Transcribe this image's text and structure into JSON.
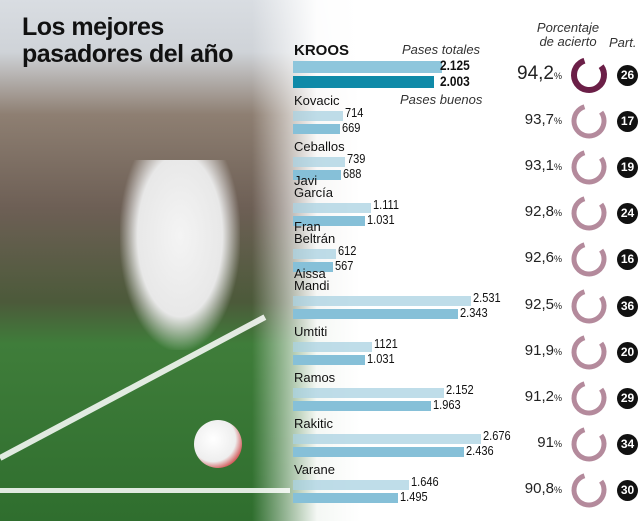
{
  "title": "Los mejores pasadores del año",
  "headers": {
    "total": "Pases totales",
    "good": "Pases buenos",
    "accuracy": "Porcentaje de acierto",
    "matches": "Part."
  },
  "colors": {
    "total_bar": "#a9d1e2",
    "good_bar": "#86c0d8",
    "kroos_total": "#8ec6dc",
    "kroos_good": "#0f8aa8",
    "ring_highlight": "#6b1f47",
    "ring": "#b48a9c"
  },
  "chart_data": {
    "type": "bar",
    "orientation": "horizontal",
    "title": "Los mejores pasadores del año",
    "categories": [
      "KROOS",
      "Kovacic",
      "Ceballos",
      "Javi García",
      "Fran Beltrán",
      "Aissa Mandi",
      "Umtiti",
      "Ramos",
      "Rakitic",
      "Varane"
    ],
    "series": [
      {
        "name": "Pases totales",
        "values": [
          2125,
          714,
          739,
          1111,
          612,
          2531,
          1121,
          2152,
          2676,
          1646
        ],
        "labels": [
          "2.125",
          "714",
          "739",
          "1.111",
          "612",
          "2.531",
          "1121",
          "2.152",
          "2.676",
          "1.646"
        ]
      },
      {
        "name": "Pases buenos",
        "values": [
          2003,
          669,
          688,
          1031,
          567,
          2343,
          1031,
          1963,
          2436,
          1495
        ],
        "labels": [
          "2.003",
          "669",
          "688",
          "1.031",
          "567",
          "2.343",
          "1.031",
          "1.963",
          "2.436",
          "1.495"
        ]
      }
    ],
    "accuracy": [
      94.2,
      93.7,
      93.1,
      92.8,
      92.6,
      92.5,
      91.9,
      91.2,
      91,
      90.8
    ],
    "accuracy_labels": [
      "94,2",
      "93,7",
      "93,1",
      "92,8",
      "92,6",
      "92,5",
      "91,9",
      "91,2",
      "91",
      "90,8"
    ],
    "percent_sign": "%",
    "matches": [
      "26",
      "17",
      "19",
      "24",
      "16",
      "36",
      "20",
      "29",
      "34",
      "30"
    ]
  }
}
